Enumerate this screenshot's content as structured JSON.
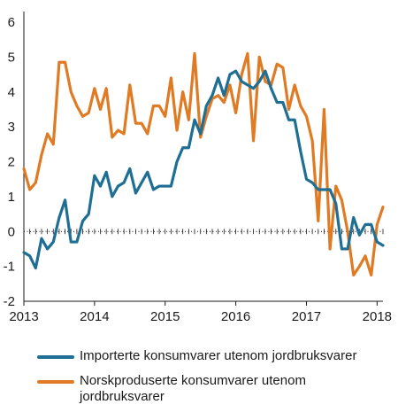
{
  "chart_data": {
    "type": "line",
    "title": "",
    "xlabel": "",
    "ylabel": "",
    "x_tick_labels": [
      "2013",
      "2014",
      "2015",
      "2016",
      "2017",
      "2018"
    ],
    "y_tick_labels": [
      "6",
      "5",
      "4",
      "3",
      "2",
      "1",
      "0",
      "-1",
      "-2"
    ],
    "xlim": [
      "2013-01",
      "2018-02"
    ],
    "ylim": [
      -2,
      6
    ],
    "grid": false,
    "zero_line": "dotted",
    "legend_position": "bottom",
    "x": [
      "2013-01",
      "2013-02",
      "2013-03",
      "2013-04",
      "2013-05",
      "2013-06",
      "2013-07",
      "2013-08",
      "2013-09",
      "2013-10",
      "2013-11",
      "2013-12",
      "2014-01",
      "2014-02",
      "2014-03",
      "2014-04",
      "2014-05",
      "2014-06",
      "2014-07",
      "2014-08",
      "2014-09",
      "2014-10",
      "2014-11",
      "2014-12",
      "2015-01",
      "2015-02",
      "2015-03",
      "2015-04",
      "2015-05",
      "2015-06",
      "2015-07",
      "2015-08",
      "2015-09",
      "2015-10",
      "2015-11",
      "2015-12",
      "2016-01",
      "2016-02",
      "2016-03",
      "2016-04",
      "2016-05",
      "2016-06",
      "2016-07",
      "2016-08",
      "2016-09",
      "2016-10",
      "2016-11",
      "2016-12",
      "2017-01",
      "2017-02",
      "2017-03",
      "2017-04",
      "2017-05",
      "2017-06",
      "2017-07",
      "2017-08",
      "2017-09",
      "2017-10",
      "2017-11",
      "2017-12",
      "2018-01",
      "2018-02"
    ],
    "series": [
      {
        "name": "Importerte konsumvarer utenom jordbruksvarer",
        "color": "#1f6f95",
        "values": [
          -0.6,
          -0.7,
          -1.05,
          -0.2,
          -0.5,
          -0.3,
          0.4,
          0.9,
          -0.3,
          -0.3,
          0.3,
          0.5,
          1.6,
          1.3,
          1.7,
          1.0,
          1.3,
          1.4,
          1.8,
          1.1,
          1.4,
          1.7,
          1.2,
          1.3,
          1.3,
          1.3,
          2.0,
          2.4,
          2.4,
          3.2,
          2.8,
          3.6,
          3.9,
          4.4,
          3.9,
          4.5,
          4.6,
          4.3,
          4.2,
          4.1,
          4.3,
          4.6,
          4.1,
          3.7,
          3.7,
          3.2,
          3.2,
          2.3,
          1.5,
          1.4,
          1.2,
          1.2,
          1.2,
          0.8,
          -0.5,
          -0.5,
          0.4,
          -0.1,
          0.2,
          0.2,
          -0.3,
          -0.4
        ]
      },
      {
        "name": "Norskproduserte konsumvarer utenom jordbruksvarer",
        "color": "#e07b24",
        "values": [
          1.8,
          1.2,
          1.4,
          2.2,
          2.8,
          2.5,
          4.85,
          4.85,
          4.0,
          3.6,
          3.3,
          3.4,
          4.1,
          3.5,
          4.1,
          2.7,
          2.9,
          2.8,
          4.2,
          3.1,
          3.1,
          2.8,
          3.6,
          3.6,
          3.3,
          4.4,
          2.9,
          4.0,
          3.2,
          5.1,
          2.7,
          3.3,
          3.8,
          3.9,
          3.7,
          4.2,
          3.4,
          4.5,
          5.1,
          2.6,
          5.0,
          4.3,
          4.2,
          4.8,
          4.7,
          3.5,
          4.2,
          3.6,
          3.3,
          2.6,
          0.3,
          3.5,
          -0.5,
          1.3,
          0.9,
          0.0,
          -1.25,
          -1.0,
          -0.7,
          -1.25,
          0.2,
          0.7
        ]
      }
    ]
  },
  "legend": {
    "items": [
      "Importerte konsumvarer utenom jordbruksvarer",
      "Norskproduserte konsumvarer utenom jordbruksvarer"
    ]
  }
}
